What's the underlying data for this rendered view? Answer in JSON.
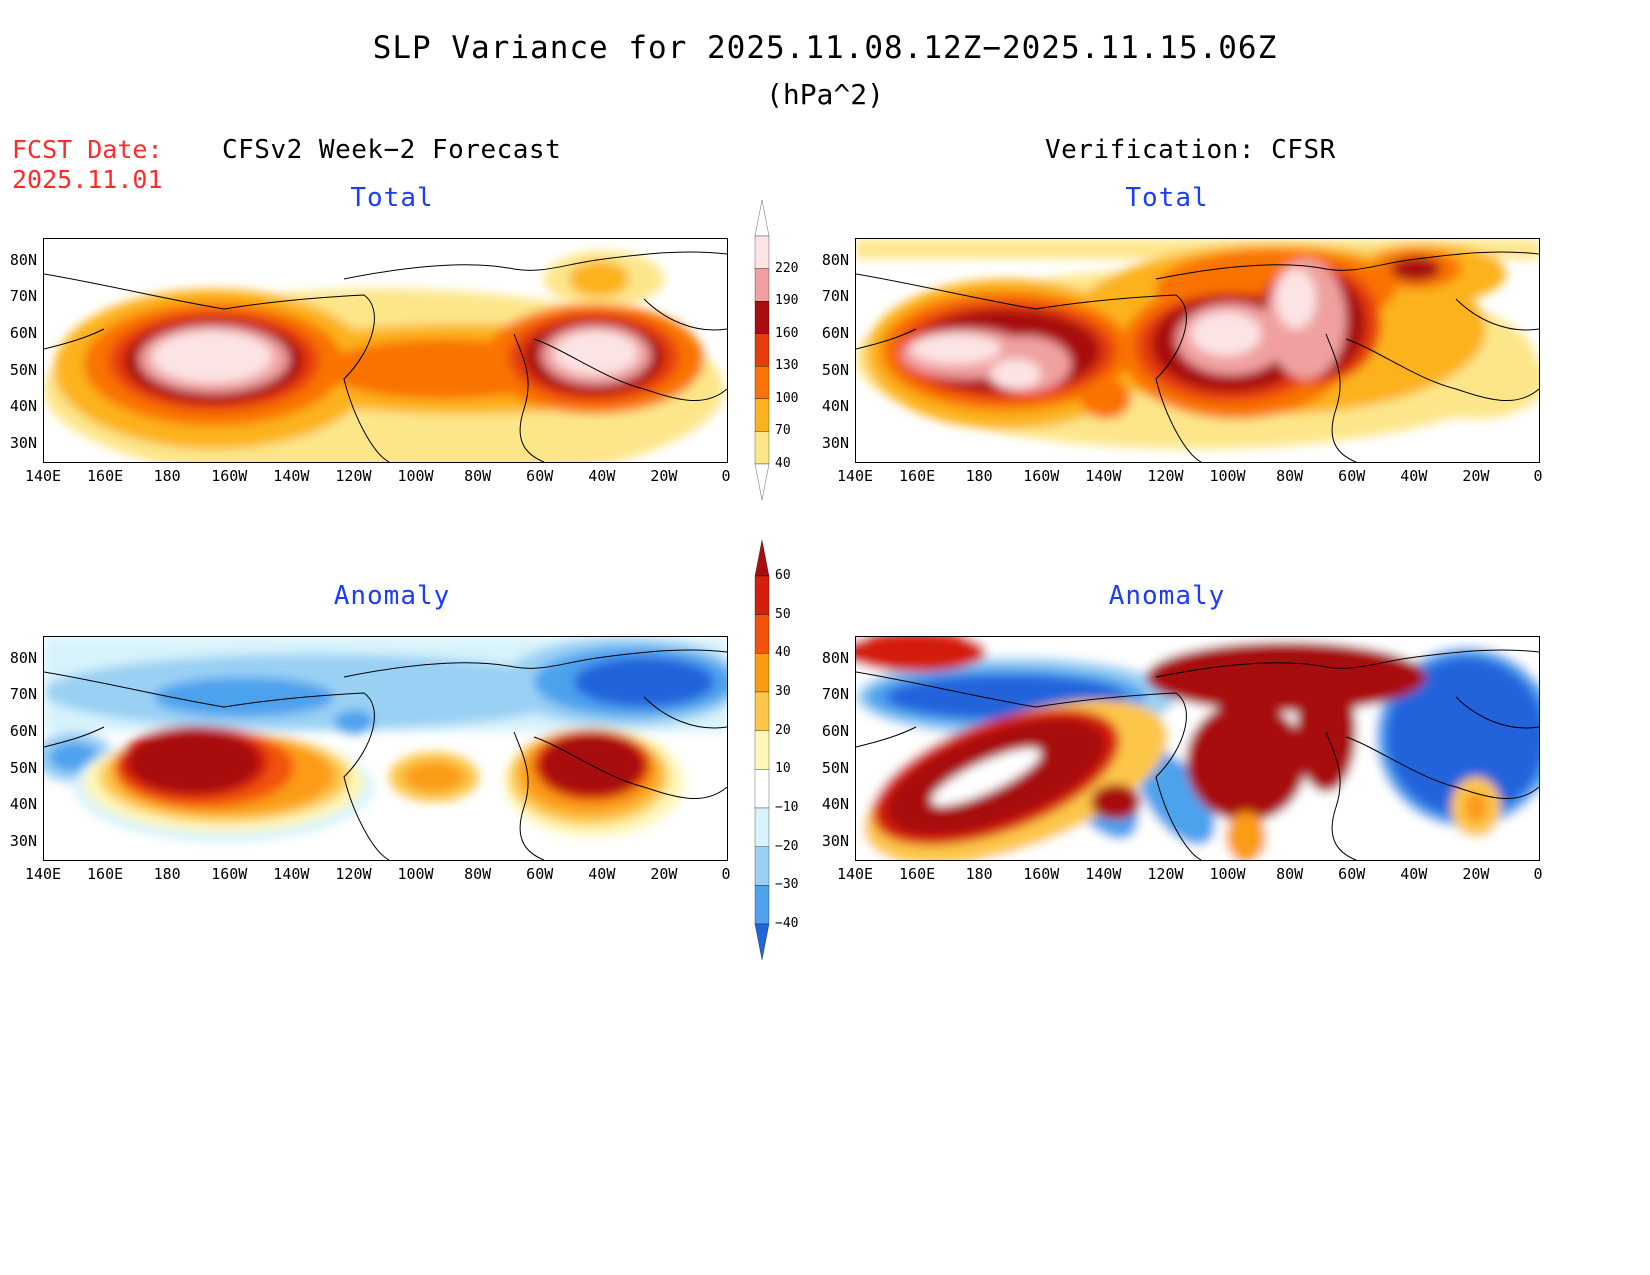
{
  "header": {
    "title": "SLP Variance for 2025.11.08.12Z−2025.11.15.06Z",
    "units": "(hPa^2)",
    "fcst_label": "FCST Date:",
    "fcst_date": "2025.11.01"
  },
  "columns": {
    "left": "CFSv2 Week−2 Forecast",
    "right": "Verification: CFSR"
  },
  "panels": {
    "total_left": "Total",
    "total_right": "Total",
    "anom_left": "Anomaly",
    "anom_right": "Anomaly"
  },
  "axes": {
    "lat": [
      "80N",
      "70N",
      "60N",
      "50N",
      "40N",
      "30N"
    ],
    "lon": [
      "140E",
      "160E",
      "180",
      "160W",
      "140W",
      "120W",
      "100W",
      "80W",
      "60W",
      "40W",
      "20W",
      "0"
    ]
  },
  "colorbars": {
    "total": {
      "levels": [
        "40",
        "70",
        "100",
        "130",
        "160",
        "190",
        "220"
      ],
      "colors": [
        "#fde68a",
        "#fcb21c",
        "#f97306",
        "#e63d0c",
        "#a80e0e",
        "#f0a0a0",
        "#fde4e4"
      ]
    },
    "anomaly": {
      "levels": [
        "60",
        "50",
        "40",
        "30",
        "20",
        "10",
        "−10",
        "−20",
        "−30",
        "−40"
      ],
      "colors": [
        "#a80e0e",
        "#d41f10",
        "#f2530c",
        "#fb9b12",
        "#fdc64a",
        "#fff7b8",
        "#ffffff",
        "#d7f3fb",
        "#9ad0f4",
        "#4ea2ee",
        "#2164dc"
      ]
    }
  }
}
